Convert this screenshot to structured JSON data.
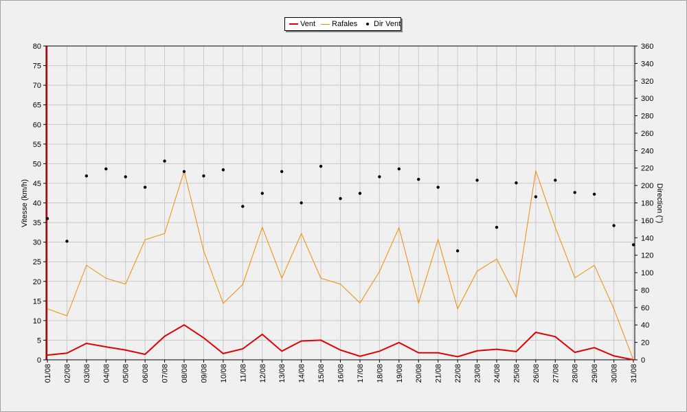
{
  "chart_data": {
    "type": "line",
    "legend_placement": "top-center",
    "grid": true,
    "categories": [
      "01/08",
      "02/08",
      "03/08",
      "04/08",
      "05/08",
      "06/08",
      "07/08",
      "08/08",
      "09/08",
      "10/08",
      "11/08",
      "12/08",
      "13/08",
      "14/08",
      "15/08",
      "16/08",
      "17/08",
      "18/08",
      "19/08",
      "20/08",
      "21/08",
      "22/08",
      "23/08",
      "24/08",
      "25/08",
      "26/08",
      "27/08",
      "28/08",
      "29/08",
      "30/08",
      "31/08"
    ],
    "ylabel": "Vitesse (km/h)",
    "y2label": "Direction (°)",
    "ylim": [
      0,
      80
    ],
    "y2lim": [
      0,
      360
    ],
    "yticks": [
      0,
      5,
      10,
      15,
      20,
      25,
      30,
      35,
      40,
      45,
      50,
      55,
      60,
      65,
      70,
      75,
      80
    ],
    "y2ticks": [
      0,
      20,
      40,
      60,
      80,
      100,
      120,
      140,
      160,
      180,
      200,
      220,
      240,
      260,
      280,
      300,
      320,
      340,
      360
    ],
    "series": [
      {
        "name": "Vent",
        "axis": "left",
        "color": "#e00000",
        "values": [
          1.2,
          1.7,
          4.2,
          3.3,
          2.5,
          1.4,
          6.0,
          8.9,
          5.6,
          1.6,
          2.8,
          6.5,
          2.2,
          4.8,
          5.0,
          2.5,
          0.9,
          2.2,
          4.4,
          1.8,
          1.8,
          0.8,
          2.3,
          2.7,
          2.1,
          7.0,
          5.9,
          1.9,
          3.1,
          1.0,
          0.0
        ]
      },
      {
        "name": "Rafales",
        "axis": "left",
        "color": "#f08c00",
        "values": [
          13.0,
          11.2,
          24.1,
          20.8,
          19.3,
          30.6,
          32.2,
          48.1,
          27.8,
          14.4,
          19.2,
          33.8,
          20.8,
          32.2,
          20.8,
          19.3,
          14.5,
          22.5,
          33.7,
          14.5,
          30.7,
          13.0,
          22.6,
          25.7,
          16.0,
          48.2,
          33.8,
          20.9,
          24.1,
          13.0,
          0.0
        ]
      },
      {
        "name": "Dir Vent",
        "axis": "right",
        "color": "#000000",
        "values": [
          162,
          136,
          211,
          219,
          210,
          198,
          228,
          216,
          211,
          218,
          176,
          191,
          216,
          180,
          222,
          185,
          191,
          210,
          219,
          207,
          198,
          125,
          206,
          152,
          203,
          187,
          206,
          192,
          190,
          154,
          132
        ]
      }
    ]
  }
}
